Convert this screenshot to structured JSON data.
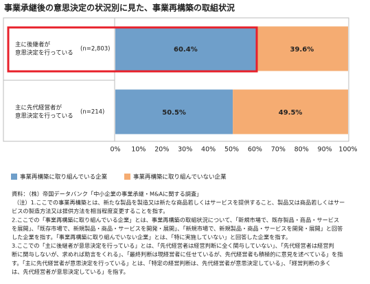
{
  "chart_data": {
    "type": "stacked-bar-horizontal",
    "title": "事業承継後の意思決定の状況別に見た、事業再構築の取組状況",
    "categories": [
      [
        "主に後継者が",
        "意思決定を行っている"
      ],
      [
        "主に先代経営者が",
        "意思決定を行っている"
      ]
    ],
    "sample_sizes": [
      "(n=2,803)",
      "(n=214)"
    ],
    "series": [
      {
        "name": "事業再構築に取り組んでいる企業",
        "color": "#6f9fca",
        "values": [
          60.4,
          50.5
        ],
        "value_labels": [
          "60.4%",
          "50.5%"
        ]
      },
      {
        "name": "事業再構築に取り組んでいない企業",
        "color": "#f5ac72",
        "values": [
          39.6,
          49.5
        ],
        "value_labels": [
          "39.6%",
          "49.5%"
        ]
      }
    ],
    "xlim": [
      0,
      100
    ],
    "xticks": [
      {
        "value": 0,
        "label": "0%"
      },
      {
        "value": 10,
        "label": "10%"
      },
      {
        "value": 20,
        "label": "20%"
      },
      {
        "value": 30,
        "label": "30%"
      },
      {
        "value": 40,
        "label": "40%"
      },
      {
        "value": 50,
        "label": "50%"
      },
      {
        "value": 60,
        "label": "60%"
      },
      {
        "value": 70,
        "label": "70%"
      },
      {
        "value": 80,
        "label": "80%"
      },
      {
        "value": 90,
        "label": "90%"
      },
      {
        "value": 100,
        "label": "100%"
      }
    ],
    "notes": [
      "資料：（株）帝国データバンク「中小企業の事業承継・M&Aに関する調査」",
      "（注）1.ここでの事業再構築とは、新たな製品を製造又は新たな商品若しくはサービスを提供すること、製品又は商品若しくはサー",
      "ビスの製造方法又は提供方法を相当程度変更することを指す。",
      "2.ここでの「事業再構築に取り組んでいる企業」とは、事業再構築の取組状況について、「新規市場で、既存製品・商品・サービス",
      "を展開」、「既存市場で、新規製品・商品・サービスを開発・展開」、「新規市場で、新規製品・商品・サービスを開発・展開」と回答",
      "した企業を指す。「事業再構築に取り組んでいない企業」とは、「特に実施していない」と回答した企業を指す。",
      "3.ここでの「主に後継者が意思決定を行っている」とは、「先代経営者は経営判断に全く関与していない」、「先代経営者は経営判",
      "断に関与しないが、求めれば助言をくれる」、「最終判断は現経営者に任せているが、先代経営者も積極的に意見を述べている」を指",
      "す。「主に先代経営者が意思決定を行っている」とは、「特定の経営判断は、先代経営者が意思決定している」、「経営判断の多く",
      "は、先代経営者が意思決定している」を指す。"
    ]
  }
}
